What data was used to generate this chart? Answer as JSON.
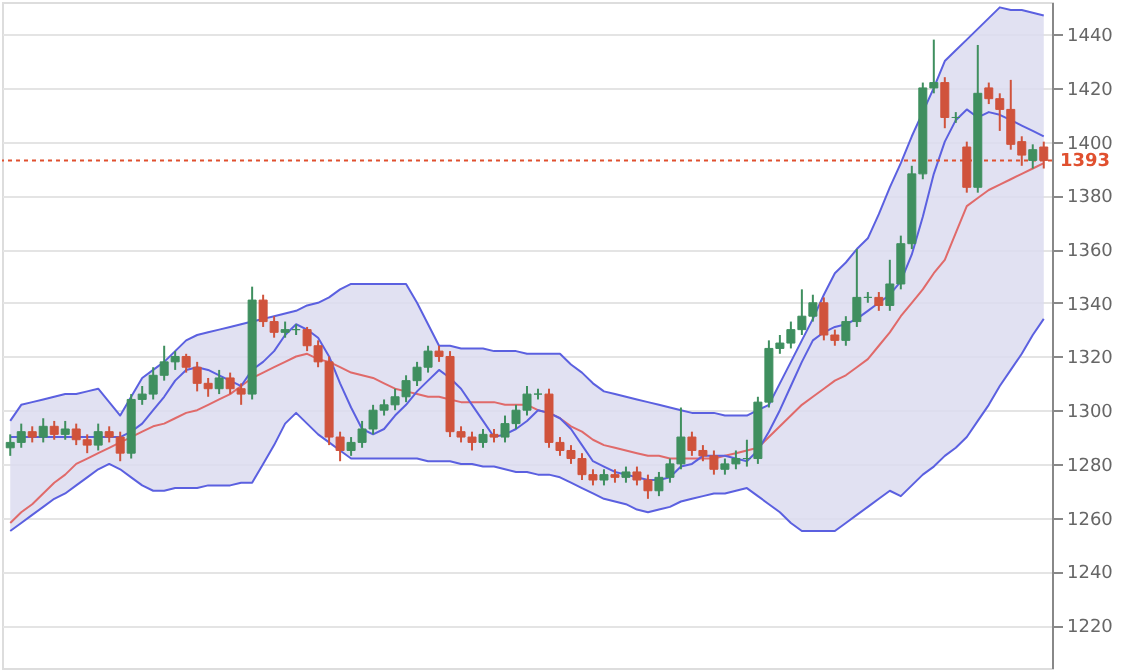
{
  "chart_data": {
    "type": "candlestick",
    "categories": [
      null,
      null,
      null,
      null,
      null,
      null,
      null,
      null,
      null,
      null,
      null,
      null,
      null,
      null,
      null,
      null,
      null,
      null,
      null,
      null,
      null,
      null,
      null,
      null,
      null,
      null,
      null,
      null,
      null,
      null,
      null,
      null,
      null,
      null,
      null,
      null,
      null,
      null,
      null,
      null,
      null,
      null,
      null,
      null,
      null,
      null,
      null,
      null,
      null,
      null,
      null,
      null,
      null,
      null,
      null,
      null,
      null,
      null,
      null,
      null,
      null,
      null,
      null,
      null,
      null,
      null,
      null,
      null,
      null,
      null,
      null,
      null,
      null,
      null,
      null,
      null,
      null,
      null,
      null,
      null,
      null,
      null,
      null,
      null,
      null,
      null,
      null,
      null,
      null,
      null,
      null,
      null,
      null,
      null,
      null
    ],
    "ohlc": [
      [
        1286,
        1291,
        1283,
        1288
      ],
      [
        1288,
        1295,
        1286,
        1292
      ],
      [
        1292,
        1294,
        1288,
        1290
      ],
      [
        1290,
        1297,
        1288,
        1294
      ],
      [
        1294,
        1296,
        1289,
        1291
      ],
      [
        1291,
        1296,
        1289,
        1293
      ],
      [
        1293,
        1295,
        1287,
        1289
      ],
      [
        1289,
        1291,
        1284,
        1287
      ],
      [
        1287,
        1295,
        1285,
        1292
      ],
      [
        1292,
        1294,
        1288,
        1290
      ],
      [
        1290,
        1292,
        1281,
        1284
      ],
      [
        1284,
        1306,
        1282,
        1304
      ],
      [
        1304,
        1309,
        1302,
        1306
      ],
      [
        1306,
        1316,
        1304,
        1313
      ],
      [
        1313,
        1324,
        1311,
        1318
      ],
      [
        1318,
        1322,
        1315,
        1320
      ],
      [
        1320,
        1321,
        1314,
        1316
      ],
      [
        1316,
        1318,
        1307,
        1310
      ],
      [
        1310,
        1312,
        1305,
        1308
      ],
      [
        1308,
        1315,
        1306,
        1312
      ],
      [
        1312,
        1314,
        1306,
        1308
      ],
      [
        1308,
        1310,
        1302,
        1306
      ],
      [
        1306,
        1346,
        1304,
        1341
      ],
      [
        1341,
        1343,
        1331,
        1333
      ],
      [
        1333,
        1335,
        1327,
        1329
      ],
      [
        1329,
        1333,
        1327,
        1330
      ],
      [
        1330,
        1332,
        1328,
        1330
      ],
      [
        1330,
        1331,
        1322,
        1324
      ],
      [
        1324,
        1326,
        1316,
        1318
      ],
      [
        1318,
        1320,
        1287,
        1290
      ],
      [
        1290,
        1292,
        1281,
        1285
      ],
      [
        1285,
        1290,
        1283,
        1288
      ],
      [
        1288,
        1296,
        1286,
        1293
      ],
      [
        1293,
        1302,
        1291,
        1300
      ],
      [
        1300,
        1304,
        1298,
        1302
      ],
      [
        1302,
        1308,
        1300,
        1305
      ],
      [
        1305,
        1313,
        1303,
        1311
      ],
      [
        1311,
        1318,
        1309,
        1316
      ],
      [
        1316,
        1324,
        1314,
        1322
      ],
      [
        1322,
        1324,
        1318,
        1320
      ],
      [
        1320,
        1322,
        1290,
        1292
      ],
      [
        1292,
        1294,
        1288,
        1290
      ],
      [
        1290,
        1292,
        1285,
        1288
      ],
      [
        1288,
        1293,
        1286,
        1291
      ],
      [
        1291,
        1293,
        1288,
        1290
      ],
      [
        1290,
        1298,
        1288,
        1295
      ],
      [
        1295,
        1302,
        1293,
        1300
      ],
      [
        1300,
        1309,
        1298,
        1306
      ],
      [
        1306,
        1308,
        1304,
        1306
      ],
      [
        1306,
        1308,
        1286,
        1288
      ],
      [
        1288,
        1290,
        1283,
        1285
      ],
      [
        1285,
        1287,
        1280,
        1282
      ],
      [
        1282,
        1284,
        1274,
        1276
      ],
      [
        1276,
        1278,
        1272,
        1274
      ],
      [
        1274,
        1278,
        1272,
        1276
      ],
      [
        1276,
        1278,
        1273,
        1275
      ],
      [
        1275,
        1279,
        1273,
        1277
      ],
      [
        1277,
        1279,
        1272,
        1274
      ],
      [
        1274,
        1276,
        1267,
        1270
      ],
      [
        1270,
        1277,
        1268,
        1275
      ],
      [
        1275,
        1282,
        1273,
        1280
      ],
      [
        1280,
        1301,
        1278,
        1290
      ],
      [
        1290,
        1292,
        1283,
        1285
      ],
      [
        1285,
        1287,
        1281,
        1283
      ],
      [
        1283,
        1285,
        1276,
        1278
      ],
      [
        1278,
        1282,
        1276,
        1280
      ],
      [
        1280,
        1285,
        1278,
        1282
      ],
      [
        1282,
        1289,
        1279,
        1282
      ],
      [
        1282,
        1305,
        1280,
        1303
      ],
      [
        1303,
        1326,
        1301,
        1323
      ],
      [
        1323,
        1328,
        1321,
        1325
      ],
      [
        1325,
        1333,
        1323,
        1330
      ],
      [
        1330,
        1345,
        1328,
        1335
      ],
      [
        1335,
        1343,
        1333,
        1340
      ],
      [
        1340,
        1342,
        1326,
        1328
      ],
      [
        1328,
        1330,
        1324,
        1326
      ],
      [
        1326,
        1335,
        1324,
        1333
      ],
      [
        1333,
        1360,
        1331,
        1342
      ],
      [
        1342,
        1344,
        1340,
        1342
      ],
      [
        1342,
        1344,
        1337,
        1339
      ],
      [
        1339,
        1356,
        1337,
        1347
      ],
      [
        1347,
        1365,
        1345,
        1362
      ],
      [
        1362,
        1391,
        1360,
        1388
      ],
      [
        1388,
        1422,
        1386,
        1420
      ],
      [
        1420,
        1438,
        1418,
        1422
      ],
      [
        1422,
        1424,
        1405,
        1409
      ],
      [
        1409,
        1411,
        1407,
        1409
      ],
      [
        1398,
        1400,
        1381,
        1383
      ],
      [
        1383,
        1436,
        1381,
        1418
      ],
      [
        1420,
        1422,
        1414,
        1416
      ],
      [
        1416,
        1418,
        1404,
        1412
      ],
      [
        1412,
        1423,
        1397,
        1399
      ],
      [
        1400,
        1402,
        1391,
        1395
      ],
      [
        1393,
        1399,
        1390,
        1397
      ],
      [
        1398,
        1400,
        1390,
        1393
      ]
    ],
    "colors": [
      "#3f8f5f",
      "#3f8f5f",
      "#d0533c",
      "#3f8f5f",
      "#d0533c",
      "#3f8f5f",
      "#d0533c",
      "#d0533c",
      "#3f8f5f",
      "#d0533c",
      "#d0533c",
      "#3f8f5f",
      "#3f8f5f",
      "#3f8f5f",
      "#3f8f5f",
      "#3f8f5f",
      "#d0533c",
      "#d0533c",
      "#d0533c",
      "#3f8f5f",
      "#d0533c",
      "#d0533c",
      "#3f8f5f",
      "#d0533c",
      "#d0533c",
      "#3f8f5f",
      "#3f8f5f",
      "#d0533c",
      "#d0533c",
      "#d0533c",
      "#d0533c",
      "#3f8f5f",
      "#3f8f5f",
      "#3f8f5f",
      "#3f8f5f",
      "#3f8f5f",
      "#3f8f5f",
      "#3f8f5f",
      "#3f8f5f",
      "#d0533c",
      "#d0533c",
      "#d0533c",
      "#d0533c",
      "#3f8f5f",
      "#d0533c",
      "#3f8f5f",
      "#3f8f5f",
      "#3f8f5f",
      "#3f8f5f",
      "#d0533c",
      "#d0533c",
      "#d0533c",
      "#d0533c",
      "#d0533c",
      "#3f8f5f",
      "#d0533c",
      "#3f8f5f",
      "#d0533c",
      "#d0533c",
      "#3f8f5f",
      "#3f8f5f",
      "#3f8f5f",
      "#d0533c",
      "#d0533c",
      "#d0533c",
      "#3f8f5f",
      "#3f8f5f",
      "#3f8f5f",
      "#3f8f5f",
      "#3f8f5f",
      "#3f8f5f",
      "#3f8f5f",
      "#3f8f5f",
      "#3f8f5f",
      "#d0533c",
      "#d0533c",
      "#3f8f5f",
      "#3f8f5f",
      "#3f8f5f",
      "#d0533c",
      "#3f8f5f",
      "#3f8f5f",
      "#3f8f5f",
      "#3f8f5f",
      "#3f8f5f",
      "#d0533c",
      "#3f8f5f",
      "#d0533c",
      "#3f8f5f",
      "#d0533c",
      "#d0533c",
      "#d0533c",
      "#d0533c",
      "#3f8f5f",
      "#d0533c"
    ],
    "series": [
      {
        "type": "line",
        "color": "#e06a6a",
        "values": [
          1258,
          1262,
          1265,
          1269,
          1273,
          1276,
          1280,
          1282,
          1284,
          1286,
          1288,
          1290,
          1292,
          1294,
          1295,
          1297,
          1299,
          1300,
          1302,
          1304,
          1306,
          1309,
          1312,
          1314,
          1316,
          1318,
          1320,
          1321,
          1319,
          1318,
          1316,
          1314,
          1313,
          1312,
          1310,
          1308,
          1307,
          1306,
          1305,
          1305,
          1304,
          1303,
          1303,
          1303,
          1303,
          1302,
          1302,
          1302,
          1300,
          1299,
          1297,
          1294,
          1292,
          1289,
          1287,
          1286,
          1285,
          1284,
          1283,
          1283,
          1282,
          1282,
          1282,
          1282,
          1282,
          1283,
          1284,
          1285,
          1286,
          1290,
          1294,
          1298,
          1302,
          1305,
          1308,
          1311,
          1313,
          1316,
          1319,
          1324,
          1329,
          1335,
          1340,
          1345,
          1351,
          1356,
          1366,
          1376,
          1379,
          1382,
          1384,
          1386,
          1388,
          1390,
          1392
        ],
        "lower": [
          1255,
          1258,
          1261,
          1264,
          1267,
          1269,
          1272,
          1275,
          1278,
          1280,
          1278,
          1275,
          1272,
          1270,
          1270,
          1271,
          1271,
          1271,
          1272,
          1272,
          1272,
          1273,
          1273,
          1280,
          1287,
          1295,
          1299,
          1295,
          1291,
          1288,
          1285,
          1282,
          1282,
          1282,
          1282,
          1282,
          1282,
          1282,
          1281,
          1281,
          1281,
          1280,
          1280,
          1279,
          1279,
          1278,
          1277,
          1277,
          1276,
          1276,
          1275,
          1273,
          1271,
          1269,
          1267,
          1266,
          1265,
          1263,
          1262,
          1263,
          1264,
          1266,
          1267,
          1268,
          1269,
          1269,
          1270,
          1271,
          1268,
          1265,
          1262,
          1258,
          1255,
          1255,
          1255,
          1255,
          1258,
          1261,
          1264,
          1267,
          1270,
          1268,
          1272,
          1276,
          1279,
          1283,
          1286,
          1290,
          1296,
          1302,
          1309,
          1315,
          1321,
          1328,
          1334
        ],
        "upper": [
          1296,
          1302,
          1303,
          1304,
          1305,
          1306,
          1306,
          1307,
          1308,
          1303,
          1298,
          1305,
          1312,
          1315,
          1318,
          1322,
          1326,
          1328,
          1329,
          1330,
          1331,
          1332,
          1333,
          1334,
          1335,
          1336,
          1337,
          1339,
          1340,
          1342,
          1345,
          1347,
          1347,
          1347,
          1347,
          1347,
          1347,
          1340,
          1332,
          1324,
          1324,
          1323,
          1323,
          1323,
          1322,
          1322,
          1322,
          1321,
          1321,
          1321,
          1321,
          1317,
          1314,
          1310,
          1307,
          1306,
          1305,
          1304,
          1303,
          1302,
          1301,
          1300,
          1299,
          1299,
          1299,
          1298,
          1298,
          1298,
          1300,
          1302,
          1310,
          1318,
          1326,
          1334,
          1343,
          1351,
          1355,
          1360,
          1364,
          1373,
          1383,
          1392,
          1402,
          1411,
          1420,
          1430,
          1434,
          1438,
          1442,
          1446,
          1450,
          1449,
          1449,
          1448,
          1447
        ]
      },
      {
        "type": "line",
        "color": "#5b60e0",
        "values": [
          1255,
          1258,
          1261,
          1264,
          1267,
          1269,
          1272,
          1275,
          1278,
          1280,
          1278,
          1275,
          1272,
          1270,
          1270,
          1271,
          1271,
          1271,
          1272,
          1272,
          1272,
          1273,
          1273,
          1280,
          1287,
          1295,
          1299,
          1295,
          1291,
          1288,
          1285,
          1282,
          1282,
          1282,
          1282,
          1282,
          1282,
          1282,
          1281,
          1281,
          1281,
          1280,
          1280,
          1279,
          1279,
          1278,
          1277,
          1277,
          1276,
          1276,
          1275,
          1273,
          1271,
          1269,
          1267,
          1266,
          1265,
          1263,
          1262,
          1263,
          1264,
          1266,
          1267,
          1268,
          1269,
          1269,
          1270,
          1271,
          1268,
          1265,
          1262,
          1258,
          1255,
          1255,
          1255,
          1255,
          1258,
          1261,
          1264,
          1267,
          1270,
          1268,
          1272,
          1276,
          1279,
          1283,
          1286,
          1290,
          1296,
          1302,
          1309,
          1315,
          1321,
          1328,
          1334
        ]
      },
      {
        "type": "line",
        "color": "#5b60e0",
        "values": [
          1296,
          1302,
          1303,
          1304,
          1305,
          1306,
          1306,
          1307,
          1308,
          1303,
          1298,
          1305,
          1312,
          1315,
          1318,
          1322,
          1326,
          1328,
          1329,
          1330,
          1331,
          1332,
          1333,
          1334,
          1335,
          1336,
          1337,
          1339,
          1340,
          1342,
          1345,
          1347,
          1347,
          1347,
          1347,
          1347,
          1347,
          1340,
          1332,
          1324,
          1324,
          1323,
          1323,
          1323,
          1322,
          1322,
          1322,
          1321,
          1321,
          1321,
          1321,
          1317,
          1314,
          1310,
          1307,
          1306,
          1305,
          1304,
          1303,
          1302,
          1301,
          1300,
          1299,
          1299,
          1299,
          1298,
          1298,
          1298,
          1300,
          1302,
          1310,
          1318,
          1326,
          1334,
          1343,
          1351,
          1355,
          1360,
          1364,
          1373,
          1383,
          1392,
          1402,
          1411,
          1420,
          1430,
          1434,
          1438,
          1442,
          1446,
          1450,
          1449,
          1449,
          1448,
          1447
        ]
      },
      {
        "type": "line",
        "color": "#5b60e0",
        "values": [
          1290,
          1290,
          1290,
          1290,
          1290,
          1290,
          1290,
          1290,
          1290,
          1290,
          1290,
          1292,
          1295,
          1300,
          1305,
          1311,
          1315,
          1316,
          1315,
          1313,
          1311,
          1309,
          1315,
          1318,
          1322,
          1328,
          1332,
          1330,
          1327,
          1320,
          1310,
          1301,
          1293,
          1291,
          1293,
          1298,
          1302,
          1307,
          1311,
          1315,
          1312,
          1308,
          1302,
          1296,
          1290,
          1291,
          1293,
          1296,
          1300,
          1299,
          1297,
          1293,
          1287,
          1281,
          1279,
          1277,
          1276,
          1275,
          1274,
          1274,
          1275,
          1279,
          1280,
          1283,
          1283,
          1283,
          1282,
          1281,
          1285,
          1292,
          1300,
          1309,
          1318,
          1326,
          1329,
          1331,
          1332,
          1334,
          1337,
          1340,
          1343,
          1348,
          1358,
          1372,
          1388,
          1400,
          1408,
          1412,
          1409,
          1411,
          1410,
          1408,
          1406,
          1404,
          1402
        ]
      }
    ],
    "ylim": [
      1204,
      1452
    ],
    "yticks": [
      1220,
      1240,
      1260,
      1280,
      1300,
      1320,
      1340,
      1360,
      1380,
      1400,
      1420,
      1440
    ],
    "grid": "y",
    "tick_labels": "y",
    "ref_lines": [
      {
        "axis": "y",
        "value": 1393,
        "label": "1393",
        "color": "#e0502f",
        "line_style": "dotted"
      }
    ]
  }
}
